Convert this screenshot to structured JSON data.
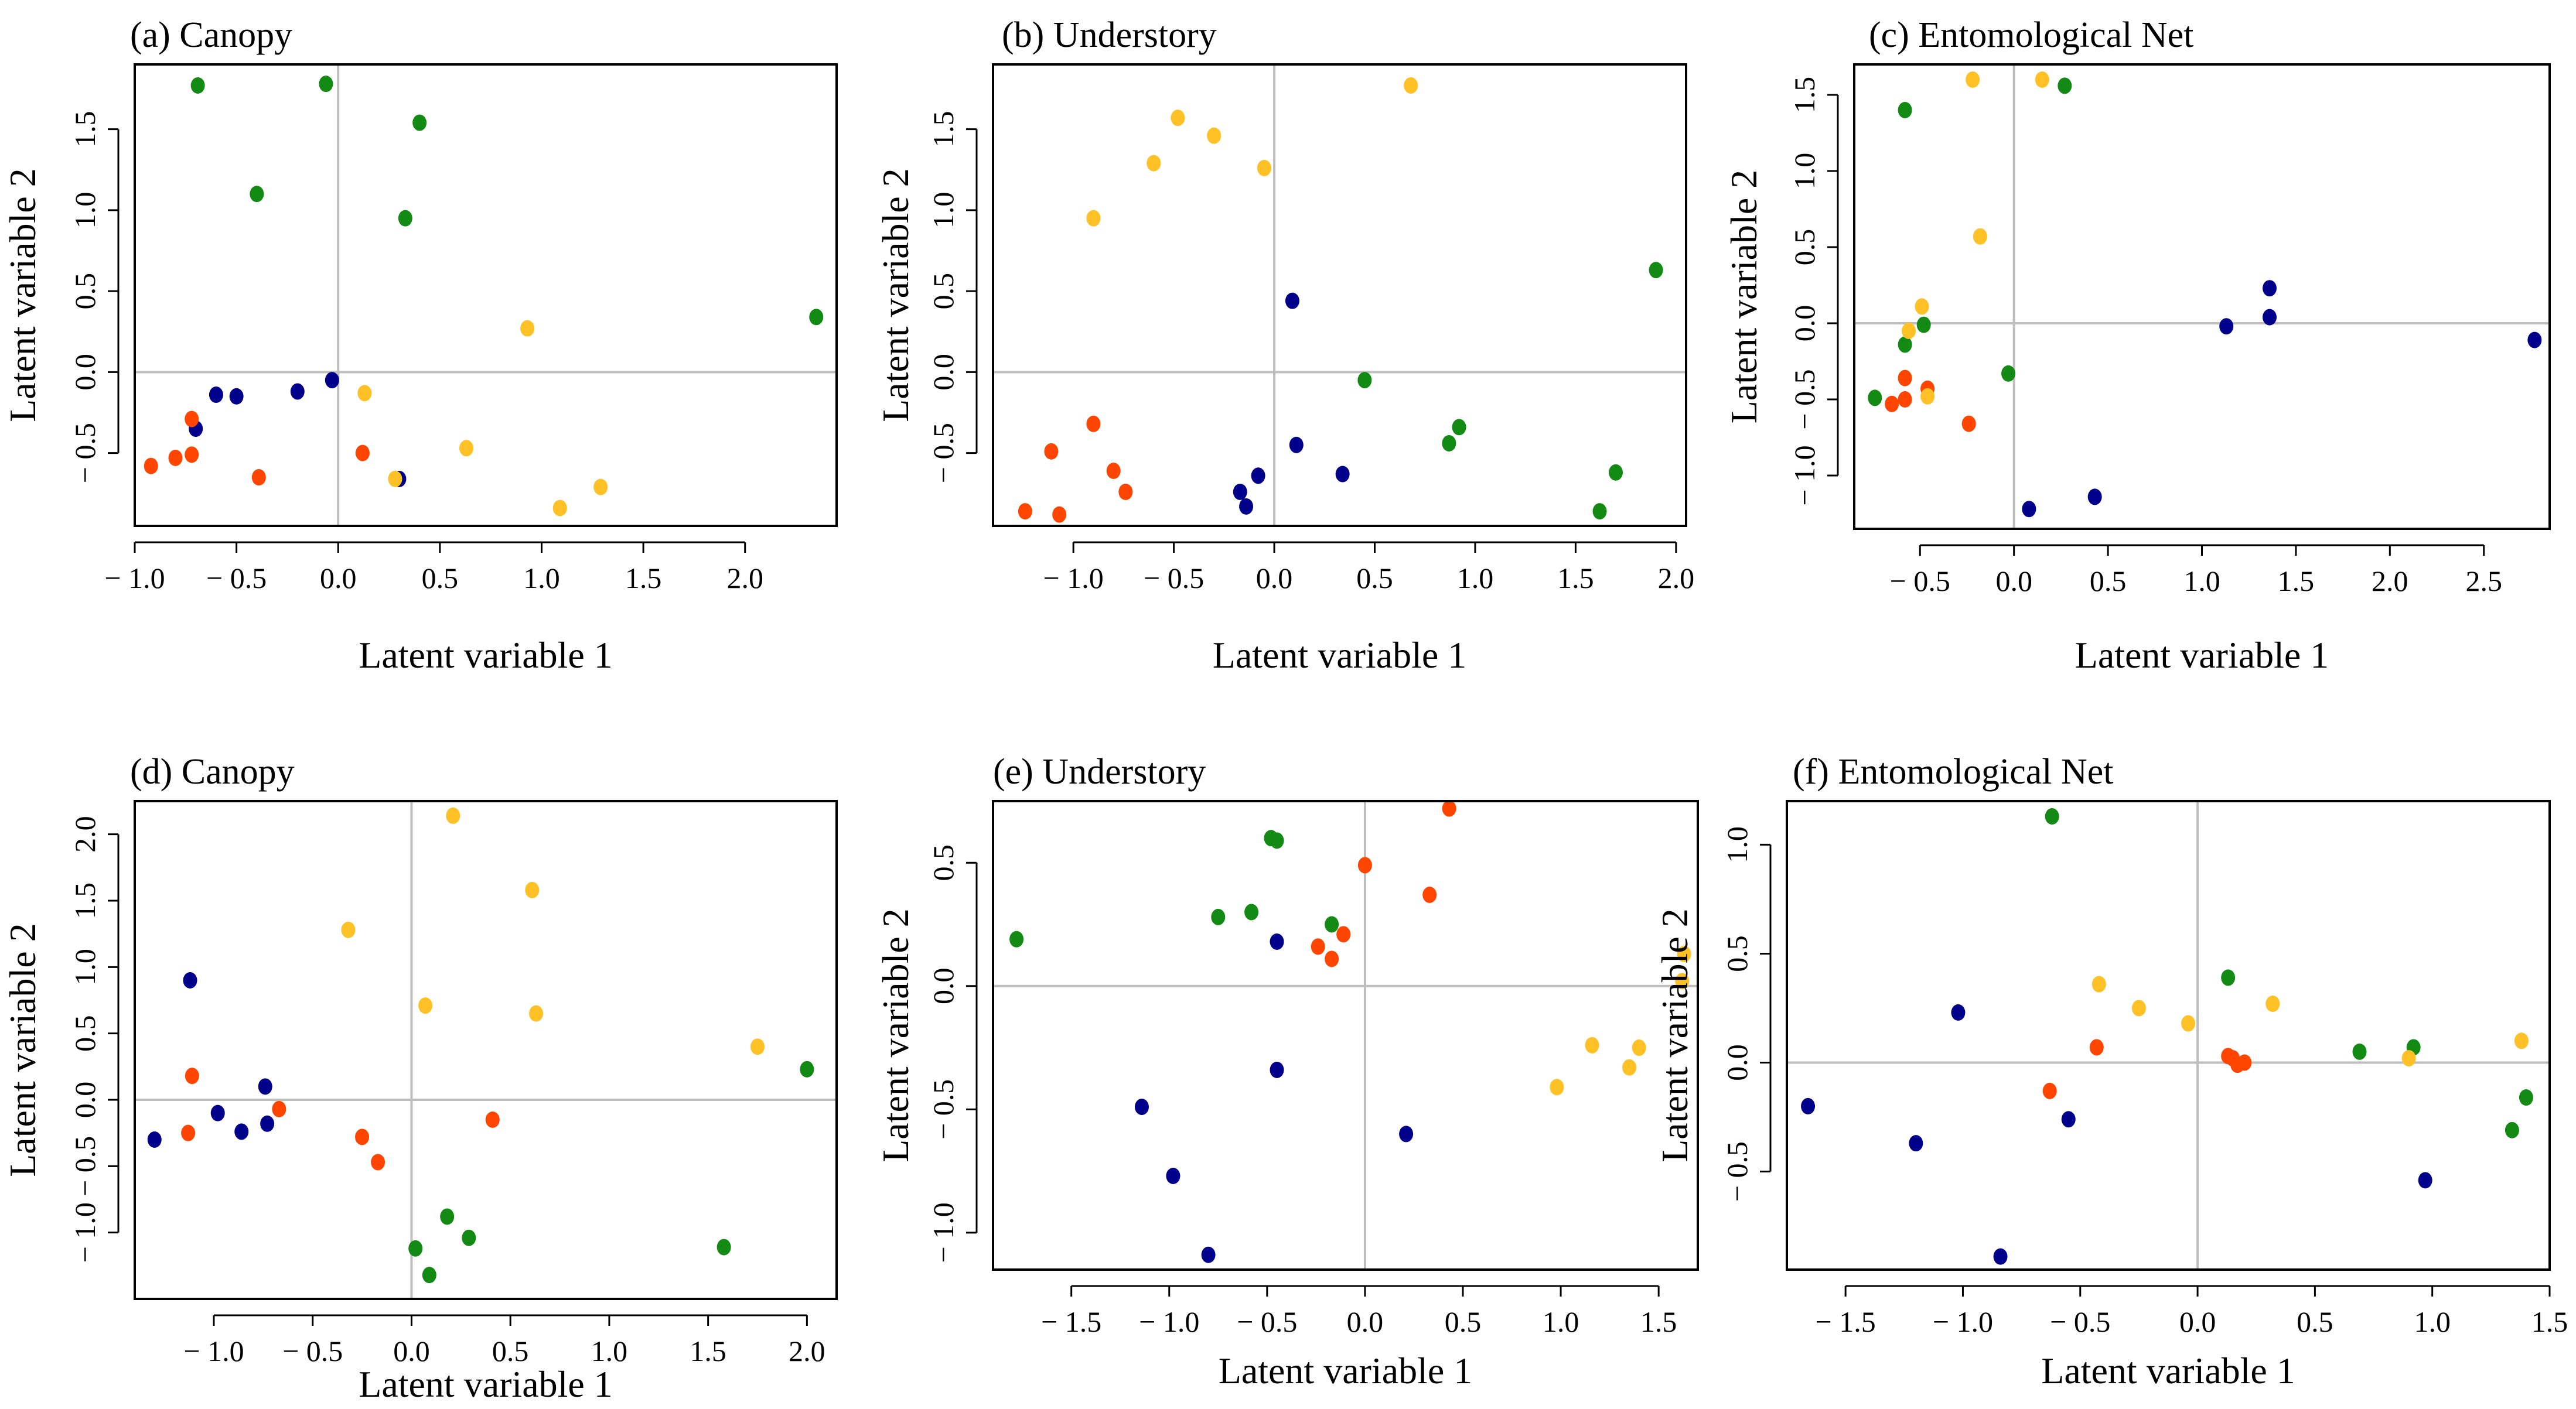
{
  "colors": {
    "navy": "#00008B",
    "red": "#FF4500",
    "green": "#138A13",
    "yellow": "#FFC125",
    "refline": "#BEBEBE",
    "frame": "#000000"
  },
  "chart_data": [
    {
      "type": "scatter",
      "title": "(a) Canopy",
      "xlabel": "Latent variable 1",
      "ylabel": "Latent variable 2",
      "xlim": [
        -1.0,
        2.45
      ],
      "ylim": [
        -0.95,
        1.9
      ],
      "xticks": [
        -1.0,
        -0.5,
        0.0,
        0.5,
        1.0,
        1.5,
        2.0
      ],
      "xtick_labels": [
        "− 1.0",
        "− 0.5",
        "0.0",
        "0.5",
        "1.0",
        "1.5",
        "2.0"
      ],
      "yticks": [
        -0.5,
        0.0,
        0.5,
        1.0,
        1.5
      ],
      "ytick_labels": [
        "− 0.5",
        "0.0",
        "0.5",
        "1.0",
        "1.5"
      ],
      "refline_x": 0,
      "refline_y": 0,
      "series": [
        {
          "name": "navy",
          "color": "#00008B",
          "x": [
            -0.7,
            -0.6,
            -0.5,
            -0.2,
            -0.03,
            0.3
          ],
          "y": [
            -0.35,
            -0.14,
            -0.15,
            -0.12,
            -0.05,
            -0.66
          ]
        },
        {
          "name": "red",
          "color": "#FF4500",
          "x": [
            -0.92,
            -0.8,
            -0.72,
            -0.72,
            -0.39,
            0.12
          ],
          "y": [
            -0.58,
            -0.53,
            -0.51,
            -0.29,
            -0.65,
            -0.5
          ]
        },
        {
          "name": "green",
          "color": "#138A13",
          "x": [
            -0.69,
            -0.4,
            -0.06,
            0.33,
            0.4,
            2.35
          ],
          "y": [
            1.77,
            1.1,
            1.78,
            0.95,
            1.54,
            0.34
          ]
        },
        {
          "name": "yellow",
          "color": "#FFC125",
          "x": [
            0.13,
            0.28,
            0.63,
            0.93,
            1.09,
            1.29
          ],
          "y": [
            -0.13,
            -0.66,
            -0.47,
            0.27,
            -0.84,
            -0.71
          ]
        }
      ]
    },
    {
      "type": "scatter",
      "title": "(b) Understory",
      "xlabel": "Latent variable 1",
      "ylabel": "Latent variable 2",
      "xlim": [
        -1.4,
        2.05
      ],
      "ylim": [
        -0.95,
        1.9
      ],
      "xticks": [
        -1.0,
        -0.5,
        0.0,
        0.5,
        1.0,
        1.5,
        2.0
      ],
      "xtick_labels": [
        "− 1.0",
        "− 0.5",
        "0.0",
        "0.5",
        "1.0",
        "1.5",
        "2.0"
      ],
      "yticks": [
        -0.5,
        0.0,
        0.5,
        1.0,
        1.5
      ],
      "ytick_labels": [
        "− 0.5",
        "0.0",
        "0.5",
        "1.0",
        "1.5"
      ],
      "refline_x": 0,
      "refline_y": 0,
      "series": [
        {
          "name": "navy",
          "color": "#00008B",
          "x": [
            -0.17,
            -0.14,
            -0.08,
            0.09,
            0.11,
            0.34
          ],
          "y": [
            -0.74,
            -0.83,
            -0.64,
            0.44,
            -0.45,
            -0.63
          ]
        },
        {
          "name": "red",
          "color": "#FF4500",
          "x": [
            -1.24,
            -1.07,
            -1.11,
            -0.9,
            -0.8,
            -0.74
          ],
          "y": [
            -0.86,
            -0.88,
            -0.49,
            -0.32,
            -0.61,
            -0.74
          ]
        },
        {
          "name": "green",
          "color": "#138A13",
          "x": [
            0.45,
            0.87,
            0.92,
            1.62,
            1.7,
            1.9
          ],
          "y": [
            -0.05,
            -0.44,
            -0.34,
            -0.86,
            -0.62,
            0.63
          ]
        },
        {
          "name": "yellow",
          "color": "#FFC125",
          "x": [
            -0.9,
            -0.6,
            -0.48,
            -0.3,
            -0.05,
            0.68
          ],
          "y": [
            0.95,
            1.29,
            1.57,
            1.46,
            1.26,
            1.77
          ]
        }
      ]
    },
    {
      "type": "scatter",
      "title": "(c) Entomological Net",
      "xlabel": "Latent variable 1",
      "ylabel": "Latent variable 2",
      "xlim": [
        -0.85,
        2.85
      ],
      "ylim": [
        -1.35,
        1.7
      ],
      "xticks": [
        -0.5,
        0.0,
        0.5,
        1.0,
        1.5,
        2.0,
        2.5
      ],
      "xtick_labels": [
        "− 0.5",
        "0.0",
        "0.5",
        "1.0",
        "1.5",
        "2.0",
        "2.5"
      ],
      "yticks": [
        -1.0,
        -0.5,
        0.0,
        0.5,
        1.0,
        1.5
      ],
      "ytick_labels": [
        "− 1.0",
        "− 0.5",
        "0.0",
        "0.5",
        "1.0",
        "1.5"
      ],
      "refline_x": 0,
      "refline_y": 0,
      "series": [
        {
          "name": "navy",
          "color": "#00008B",
          "x": [
            0.08,
            0.43,
            1.13,
            1.36,
            1.36,
            2.77
          ],
          "y": [
            -1.22,
            -1.14,
            -0.02,
            0.04,
            0.23,
            -0.11
          ]
        },
        {
          "name": "red",
          "color": "#FF4500",
          "x": [
            -0.65,
            -0.58,
            -0.58,
            -0.46,
            -0.24
          ],
          "y": [
            -0.53,
            -0.5,
            -0.36,
            -0.43,
            -0.66
          ]
        },
        {
          "name": "green",
          "color": "#138A13",
          "x": [
            -0.74,
            -0.58,
            -0.58,
            -0.48,
            -0.03,
            0.27
          ],
          "y": [
            -0.49,
            1.4,
            -0.14,
            -0.01,
            -0.33,
            1.56
          ]
        },
        {
          "name": "yellow",
          "color": "#FFC125",
          "x": [
            -0.56,
            -0.49,
            -0.46,
            -0.22,
            -0.18,
            0.15
          ],
          "y": [
            -0.05,
            0.11,
            -0.48,
            1.6,
            0.57,
            1.6
          ]
        }
      ]
    },
    {
      "type": "scatter",
      "title": "(d) Canopy",
      "xlabel": "Latent variable 1",
      "ylabel": "Latent variable 2",
      "xlim": [
        -1.4,
        2.15
      ],
      "ylim": [
        -1.5,
        2.25
      ],
      "xticks": [
        -1.0,
        -0.5,
        0.0,
        0.5,
        1.0,
        1.5,
        2.0
      ],
      "xtick_labels": [
        "− 1.0",
        "− 0.5",
        "0.0",
        "0.5",
        "1.0",
        "1.5",
        "2.0"
      ],
      "yticks": [
        -1.0,
        -0.5,
        0.0,
        0.5,
        1.0,
        1.5,
        2.0
      ],
      "ytick_labels": [
        "− 1.0",
        "− 0.5",
        "0.0",
        "0.5",
        "1.0",
        "1.5",
        "2.0"
      ],
      "refline_x": 0,
      "refline_y": 0,
      "series": [
        {
          "name": "navy",
          "color": "#00008B",
          "x": [
            -1.3,
            -1.12,
            -0.98,
            -0.86,
            -0.74,
            -0.73
          ],
          "y": [
            -0.3,
            0.9,
            -0.1,
            -0.24,
            0.1,
            -0.18
          ]
        },
        {
          "name": "red",
          "color": "#FF4500",
          "x": [
            -1.13,
            -1.11,
            -0.67,
            -0.25,
            -0.17,
            0.41
          ],
          "y": [
            -0.25,
            0.18,
            -0.07,
            -0.28,
            -0.47,
            -0.15
          ]
        },
        {
          "name": "green",
          "color": "#138A13",
          "x": [
            0.02,
            0.09,
            0.18,
            0.29,
            1.58,
            2.0
          ],
          "y": [
            -1.12,
            -1.32,
            -0.88,
            -1.04,
            -1.11,
            0.23
          ]
        },
        {
          "name": "yellow",
          "color": "#FFC125",
          "x": [
            -0.32,
            0.07,
            0.21,
            0.61,
            0.63,
            1.75
          ],
          "y": [
            1.28,
            0.71,
            2.14,
            1.58,
            0.65,
            0.4
          ]
        }
      ]
    },
    {
      "type": "scatter",
      "title": "(e) Understory",
      "xlabel": "Latent variable 1",
      "ylabel": "Latent variable 2",
      "xlim": [
        -1.9,
        1.7
      ],
      "ylim": [
        -1.15,
        0.75
      ],
      "xticks": [
        -1.5,
        -1.0,
        -0.5,
        0.0,
        0.5,
        1.0,
        1.5
      ],
      "xtick_labels": [
        "− 1.5",
        "− 1.0",
        "− 0.5",
        "0.0",
        "0.5",
        "1.0",
        "1.5"
      ],
      "yticks": [
        -1.0,
        -0.5,
        0.0,
        0.5
      ],
      "ytick_labels": [
        "− 1.0",
        "− 0.5",
        "0.0",
        "0.5"
      ],
      "refline_x": 0,
      "refline_y": 0,
      "series": [
        {
          "name": "navy",
          "color": "#00008B",
          "x": [
            -1.14,
            -0.98,
            -0.8,
            -0.45,
            -0.45,
            0.21
          ],
          "y": [
            -0.49,
            -0.77,
            -1.09,
            0.18,
            -0.34,
            -0.6
          ]
        },
        {
          "name": "red",
          "color": "#FF4500",
          "x": [
            -0.24,
            -0.17,
            -0.11,
            0.0,
            0.33,
            0.43
          ],
          "y": [
            0.16,
            0.11,
            0.21,
            0.49,
            0.37,
            0.72
          ]
        },
        {
          "name": "green",
          "color": "#138A13",
          "x": [
            -1.78,
            -0.75,
            -0.58,
            -0.48,
            -0.45,
            -0.17
          ],
          "y": [
            0.19,
            0.28,
            0.3,
            0.6,
            0.59,
            0.25
          ]
        },
        {
          "name": "yellow",
          "color": "#FFC125",
          "x": [
            0.98,
            1.16,
            1.35,
            1.4,
            1.62,
            1.63
          ],
          "y": [
            -0.41,
            -0.24,
            -0.33,
            -0.25,
            0.02,
            0.13
          ]
        }
      ]
    },
    {
      "type": "scatter",
      "title": "(f) Entomological Net",
      "xlabel": "Latent variable 1",
      "ylabel": "Latent variable 2",
      "xlim": [
        -1.75,
        1.5
      ],
      "ylim": [
        -0.95,
        1.2
      ],
      "xticks": [
        -1.5,
        -1.0,
        -0.5,
        0.0,
        0.5,
        1.0,
        1.5
      ],
      "xtick_labels": [
        "− 1.5",
        "− 1.0",
        "− 0.5",
        "0.0",
        "0.5",
        "1.0",
        "1.5"
      ],
      "yticks": [
        -0.5,
        0.0,
        0.5,
        1.0
      ],
      "ytick_labels": [
        "− 0.5",
        "0.0",
        "0.5",
        "1.0"
      ],
      "refline_x": 0,
      "refline_y": 0,
      "series": [
        {
          "name": "navy",
          "color": "#00008B",
          "x": [
            -1.66,
            -1.2,
            -1.02,
            -0.84,
            -0.55,
            0.97
          ],
          "y": [
            -0.2,
            -0.37,
            0.23,
            -0.89,
            -0.26,
            -0.54
          ]
        },
        {
          "name": "red",
          "color": "#FF4500",
          "x": [
            -0.63,
            -0.43,
            0.13,
            0.15,
            0.17,
            0.2
          ],
          "y": [
            -0.13,
            0.07,
            0.03,
            0.02,
            -0.01,
            0.0
          ]
        },
        {
          "name": "green",
          "color": "#138A13",
          "x": [
            -0.62,
            0.13,
            0.69,
            0.92,
            1.34,
            1.4
          ],
          "y": [
            1.13,
            0.39,
            0.05,
            0.07,
            -0.31,
            -0.16
          ]
        },
        {
          "name": "yellow",
          "color": "#FFC125",
          "x": [
            -0.42,
            -0.25,
            -0.04,
            0.32,
            0.9,
            1.38
          ],
          "y": [
            0.36,
            0.25,
            0.18,
            0.27,
            0.02,
            0.1
          ]
        }
      ]
    }
  ]
}
